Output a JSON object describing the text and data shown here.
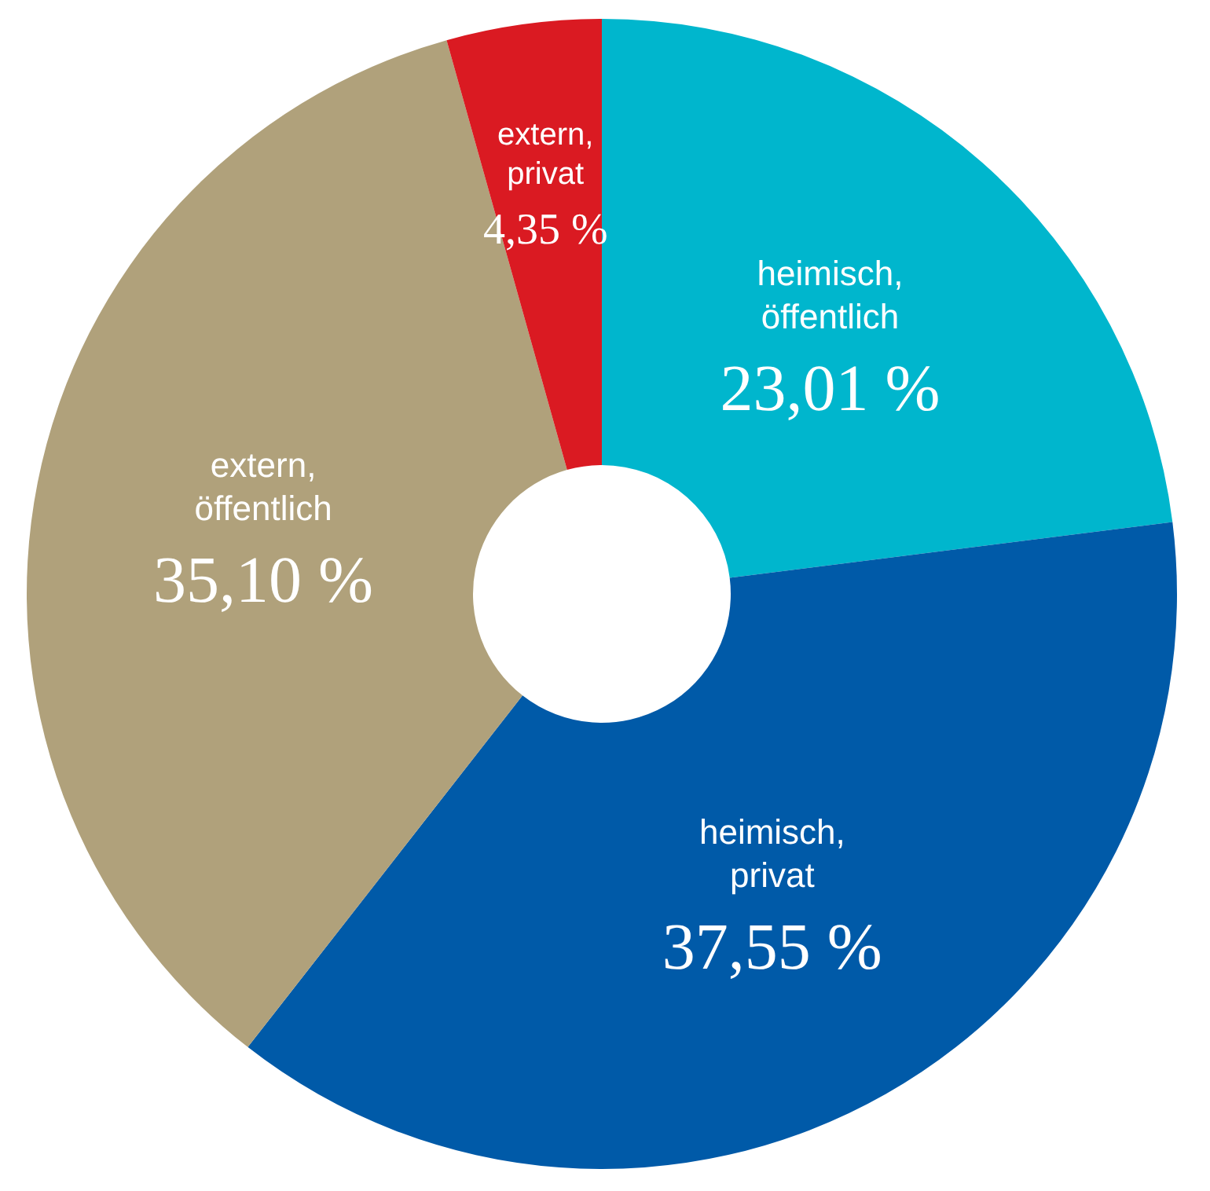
{
  "chart_data": {
    "type": "donut",
    "categories": [
      "heimisch, öffentlich",
      "heimisch, privat",
      "extern, öffentlich",
      "extern, privat"
    ],
    "values": [
      23.01,
      37.55,
      35.1,
      4.35
    ],
    "value_labels": [
      "23,01 %",
      "37,55 %",
      "35,10 %",
      "4,35 %"
    ],
    "colors": [
      "#00b6cd",
      "#005aa8",
      "#b0a17b",
      "#da1a22"
    ],
    "legend": false
  }
}
